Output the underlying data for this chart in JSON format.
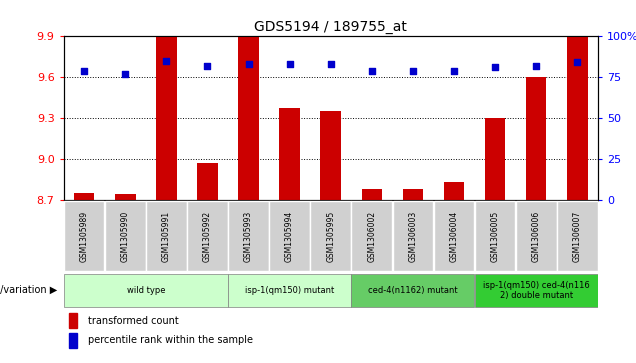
{
  "title": "GDS5194 / 189755_at",
  "samples": [
    "GSM1305989",
    "GSM1305990",
    "GSM1305991",
    "GSM1305992",
    "GSM1305993",
    "GSM1305994",
    "GSM1305995",
    "GSM1306002",
    "GSM1306003",
    "GSM1306004",
    "GSM1306005",
    "GSM1306006",
    "GSM1306007"
  ],
  "bar_values": [
    8.75,
    8.74,
    9.9,
    8.97,
    9.9,
    9.37,
    9.35,
    8.78,
    8.78,
    8.83,
    9.3,
    9.6,
    9.9
  ],
  "dot_values": [
    79,
    77,
    85,
    82,
    83,
    83,
    83,
    79,
    79,
    79,
    81,
    82,
    84
  ],
  "bar_color": "#cc0000",
  "dot_color": "#0000cc",
  "ylim_left": [
    8.7,
    9.9
  ],
  "ylim_right": [
    0,
    100
  ],
  "yticks_left": [
    8.7,
    9.0,
    9.3,
    9.6,
    9.9
  ],
  "yticks_right": [
    0,
    25,
    50,
    75,
    100
  ],
  "ytick_labels_right": [
    "0",
    "25",
    "50",
    "75",
    "100%"
  ],
  "groups": [
    {
      "label": "wild type",
      "start": 0,
      "end": 3,
      "color": "#ccffcc"
    },
    {
      "label": "isp-1(qm150) mutant",
      "start": 4,
      "end": 6,
      "color": "#ccffcc"
    },
    {
      "label": "ced-4(n1162) mutant",
      "start": 7,
      "end": 9,
      "color": "#66cc66"
    },
    {
      "label": "isp-1(qm150) ced-4(n116\n2) double mutant",
      "start": 10,
      "end": 12,
      "color": "#33cc33"
    }
  ],
  "group_label": "genotype/variation ▶",
  "legend_bar": "transformed count",
  "legend_dot": "percentile rank within the sample",
  "bg_color": "#ffffff",
  "bar_baseline": 8.7,
  "sample_cell_color": "#d0d0d0"
}
